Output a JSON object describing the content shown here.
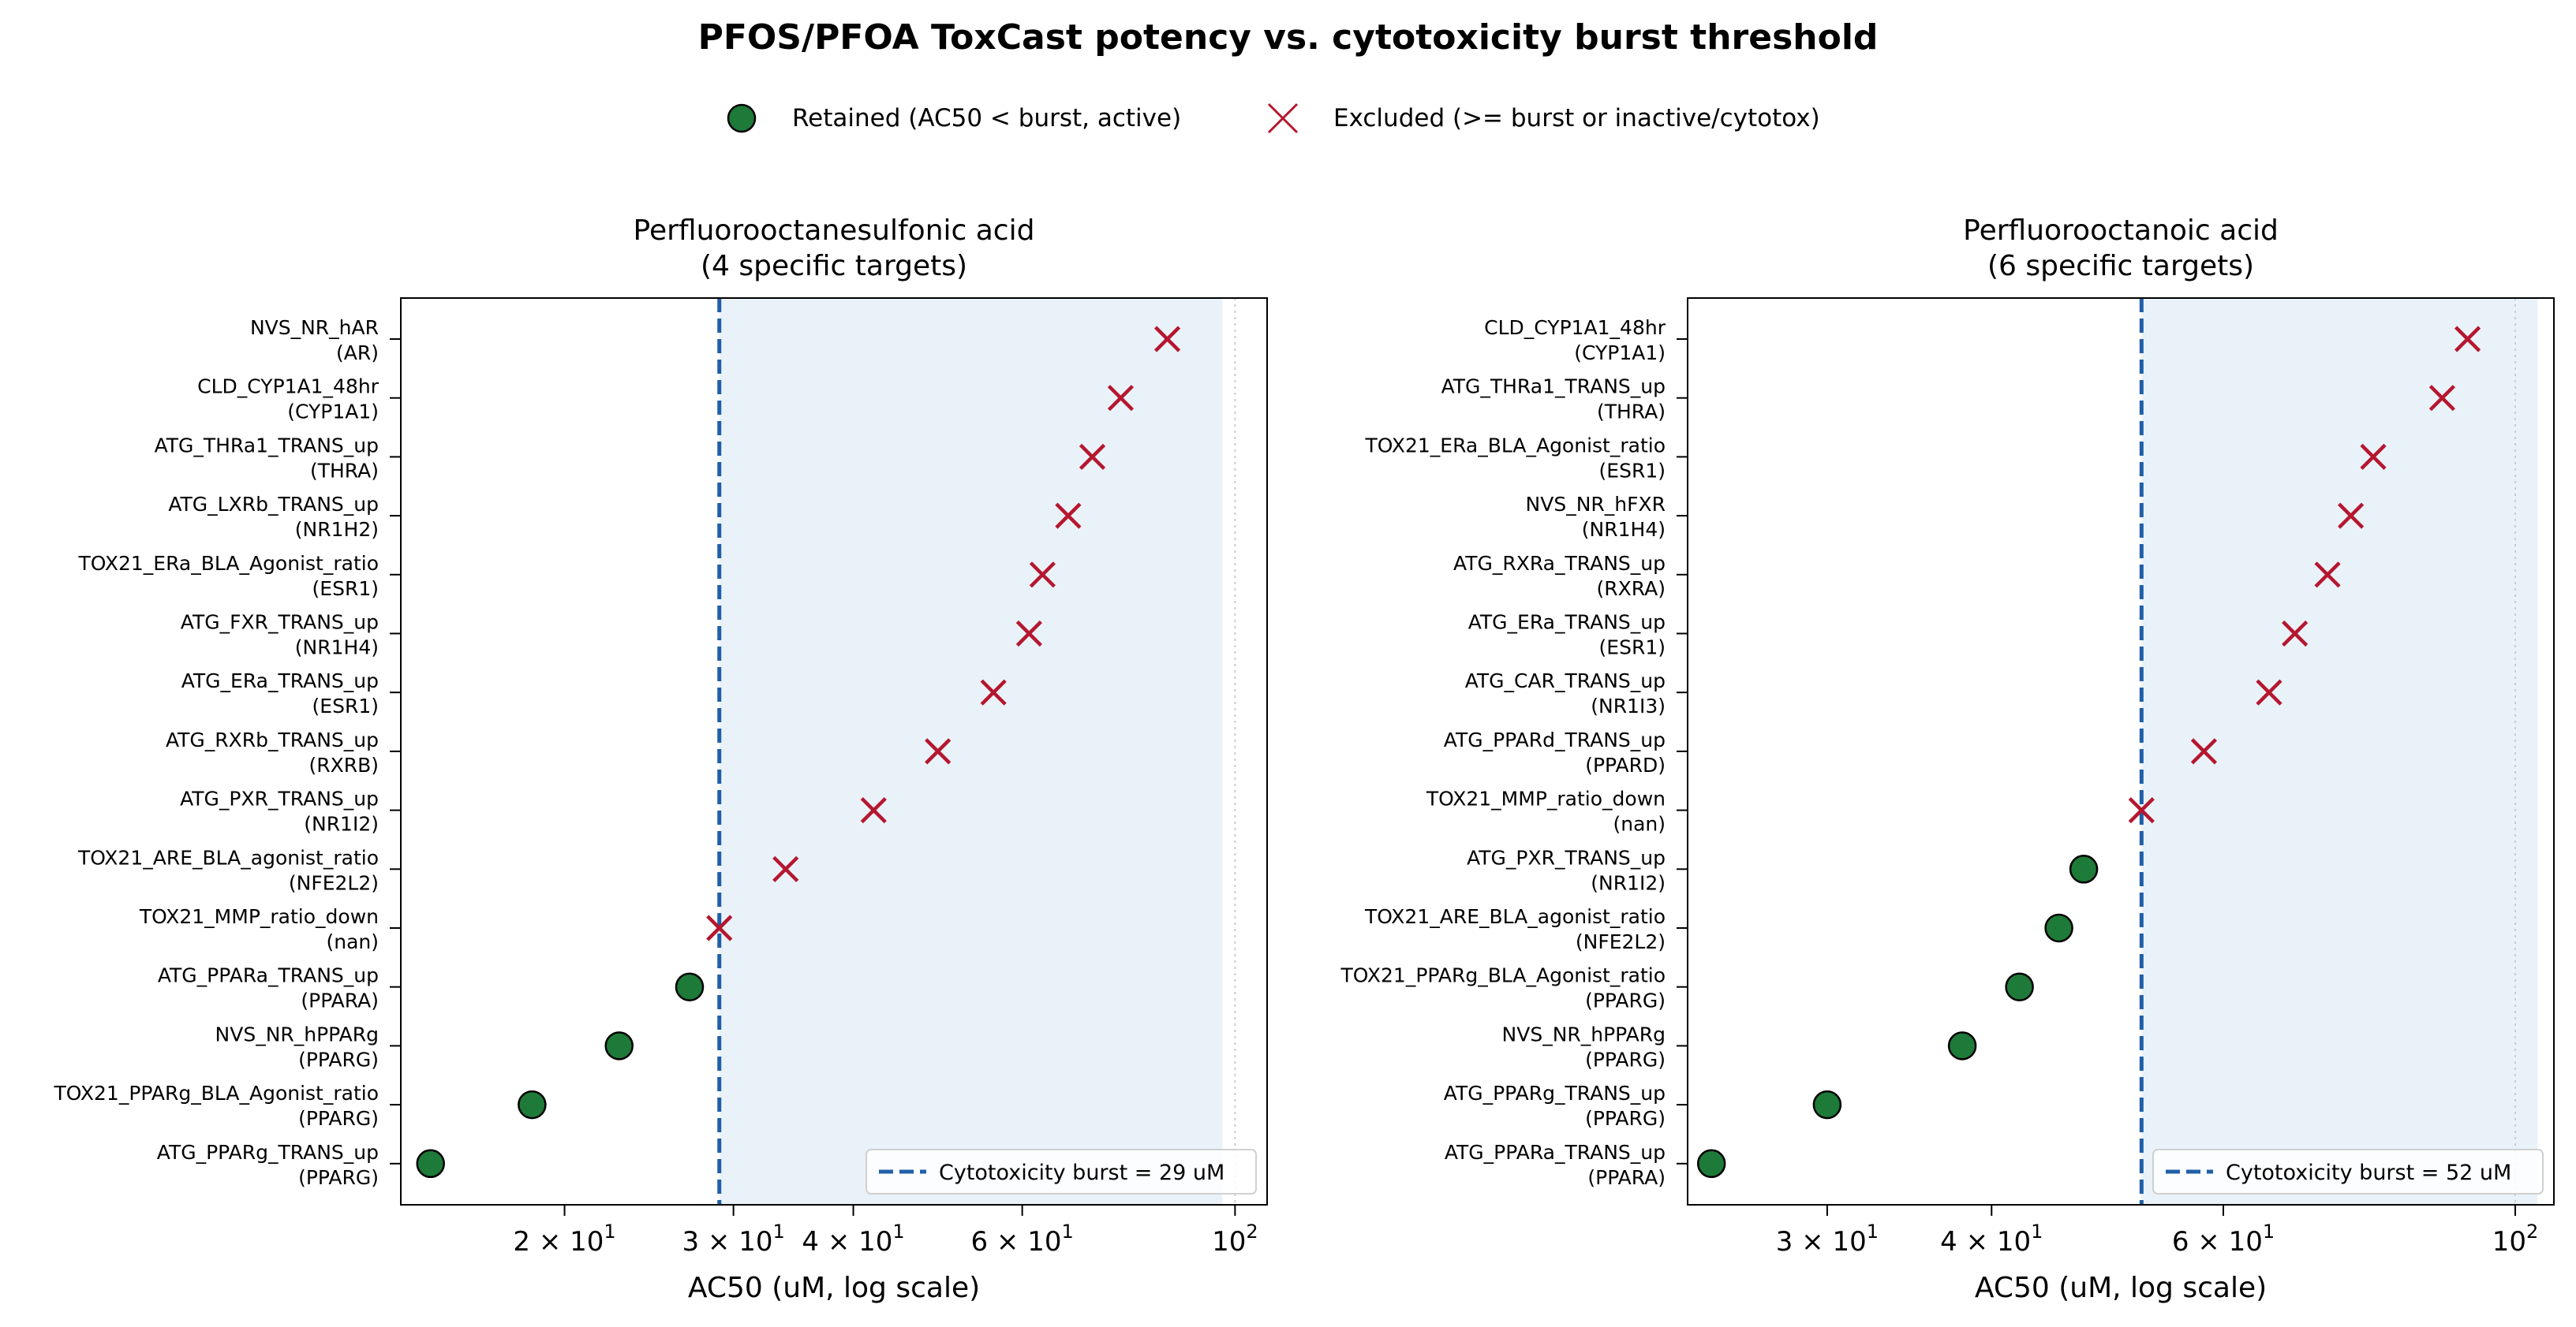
{
  "title": "PFOS/PFOA ToxCast potency vs. cytotoxicity burst threshold",
  "legend": {
    "retained": "Retained (AC50 < burst, active)",
    "excluded": "Excluded (>= burst or inactive/cytotox)"
  },
  "colors": {
    "retained_fill": "#1e7a38",
    "excluded": "#b5172f",
    "burst_line": "#1f5fa8",
    "excluded_region": "#eaf2f9"
  },
  "chart_data": [
    {
      "type": "scatter",
      "title": "Perfluorooctanesulfonic acid",
      "subtitle": "(4 specific targets)",
      "xlabel": "AC50 (uM, log scale)",
      "x_scale": "log",
      "xlim": [
        13.5,
        108
      ],
      "excluded_region_end": 97,
      "reference_line": 100,
      "x_ticks": [
        {
          "value": 20,
          "label": "2 × 10",
          "exp": "1"
        },
        {
          "value": 30,
          "label": "3 × 10",
          "exp": "1"
        },
        {
          "value": 40,
          "label": "4 × 10",
          "exp": "1"
        },
        {
          "value": 60,
          "label": "6 × 10",
          "exp": "1"
        },
        {
          "value": 100,
          "label": "10",
          "exp": "2"
        }
      ],
      "burst": {
        "value": 29,
        "label": "Cytotoxicity burst = 29 uM"
      },
      "points": [
        {
          "assay": "NVS_NR_hAR",
          "gene": "(AR)",
          "ac50": 85,
          "status": "excluded"
        },
        {
          "assay": "CLD_CYP1A1_48hr",
          "gene": "(CYP1A1)",
          "ac50": 76,
          "status": "excluded"
        },
        {
          "assay": "ATG_THRa1_TRANS_up",
          "gene": "(THRA)",
          "ac50": 71,
          "status": "excluded"
        },
        {
          "assay": "ATG_LXRb_TRANS_up",
          "gene": "(NR1H2)",
          "ac50": 67,
          "status": "excluded"
        },
        {
          "assay": "TOX21_ERa_BLA_Agonist_ratio",
          "gene": "(ESR1)",
          "ac50": 63,
          "status": "excluded"
        },
        {
          "assay": "ATG_FXR_TRANS_up",
          "gene": "(NR1H4)",
          "ac50": 61,
          "status": "excluded"
        },
        {
          "assay": "ATG_ERa_TRANS_up",
          "gene": "(ESR1)",
          "ac50": 56,
          "status": "excluded"
        },
        {
          "assay": "ATG_RXRb_TRANS_up",
          "gene": "(RXRB)",
          "ac50": 49,
          "status": "excluded"
        },
        {
          "assay": "ATG_PXR_TRANS_up",
          "gene": "(NR1I2)",
          "ac50": 42,
          "status": "excluded"
        },
        {
          "assay": "TOX21_ARE_BLA_agonist_ratio",
          "gene": "(NFE2L2)",
          "ac50": 34,
          "status": "excluded"
        },
        {
          "assay": "TOX21_MMP_ratio_down",
          "gene": "(nan)",
          "ac50": 29,
          "status": "excluded"
        },
        {
          "assay": "ATG_PPARa_TRANS_up",
          "gene": "(PPARA)",
          "ac50": 27,
          "status": "retained"
        },
        {
          "assay": "NVS_NR_hPPARg",
          "gene": "(PPARG)",
          "ac50": 22.8,
          "status": "retained"
        },
        {
          "assay": "TOX21_PPARg_BLA_Agonist_ratio",
          "gene": "(PPARG)",
          "ac50": 18.5,
          "status": "retained"
        },
        {
          "assay": "ATG_PPARg_TRANS_up",
          "gene": "(PPARG)",
          "ac50": 14.5,
          "status": "retained"
        }
      ]
    },
    {
      "type": "scatter",
      "title": "Perfluorooctanoic acid",
      "subtitle": "(6 specific targets)",
      "xlabel": "AC50 (uM, log scale)",
      "x_scale": "log",
      "xlim": [
        23.5,
        107
      ],
      "excluded_region_end": 104,
      "reference_line": 100,
      "x_ticks": [
        {
          "value": 30,
          "label": "3 × 10",
          "exp": "1"
        },
        {
          "value": 40,
          "label": "4 × 10",
          "exp": "1"
        },
        {
          "value": 60,
          "label": "6 × 10",
          "exp": "1"
        },
        {
          "value": 100,
          "label": "10",
          "exp": "2"
        }
      ],
      "burst": {
        "value": 52,
        "label": "Cytotoxicity burst = 52 uM"
      },
      "points": [
        {
          "assay": "CLD_CYP1A1_48hr",
          "gene": "(CYP1A1)",
          "ac50": 92,
          "status": "excluded"
        },
        {
          "assay": "ATG_THRa1_TRANS_up",
          "gene": "(THRA)",
          "ac50": 88,
          "status": "excluded"
        },
        {
          "assay": "TOX21_ERa_BLA_Agonist_ratio",
          "gene": "(ESR1)",
          "ac50": 78,
          "status": "excluded"
        },
        {
          "assay": "NVS_NR_hFXR",
          "gene": "(NR1H4)",
          "ac50": 75,
          "status": "excluded"
        },
        {
          "assay": "ATG_RXRa_TRANS_up",
          "gene": "(RXRA)",
          "ac50": 72,
          "status": "excluded"
        },
        {
          "assay": "ATG_ERa_TRANS_up",
          "gene": "(ESR1)",
          "ac50": 68,
          "status": "excluded"
        },
        {
          "assay": "ATG_CAR_TRANS_up",
          "gene": "(NR1I3)",
          "ac50": 65,
          "status": "excluded"
        },
        {
          "assay": "ATG_PPARd_TRANS_up",
          "gene": "(PPARD)",
          "ac50": 58,
          "status": "excluded"
        },
        {
          "assay": "TOX21_MMP_ratio_down",
          "gene": "(nan)",
          "ac50": 52,
          "status": "excluded"
        },
        {
          "assay": "ATG_PXR_TRANS_up",
          "gene": "(NR1I2)",
          "ac50": 47,
          "status": "retained"
        },
        {
          "assay": "TOX21_ARE_BLA_agonist_ratio",
          "gene": "(NFE2L2)",
          "ac50": 45,
          "status": "retained"
        },
        {
          "assay": "TOX21_PPARg_BLA_Agonist_ratio",
          "gene": "(PPARG)",
          "ac50": 42,
          "status": "retained"
        },
        {
          "assay": "NVS_NR_hPPARg",
          "gene": "(PPARG)",
          "ac50": 38,
          "status": "retained"
        },
        {
          "assay": "ATG_PPARg_TRANS_up",
          "gene": "(PPARG)",
          "ac50": 30,
          "status": "retained"
        },
        {
          "assay": "ATG_PPARa_TRANS_up",
          "gene": "(PPARA)",
          "ac50": 24.5,
          "status": "retained"
        }
      ]
    }
  ]
}
